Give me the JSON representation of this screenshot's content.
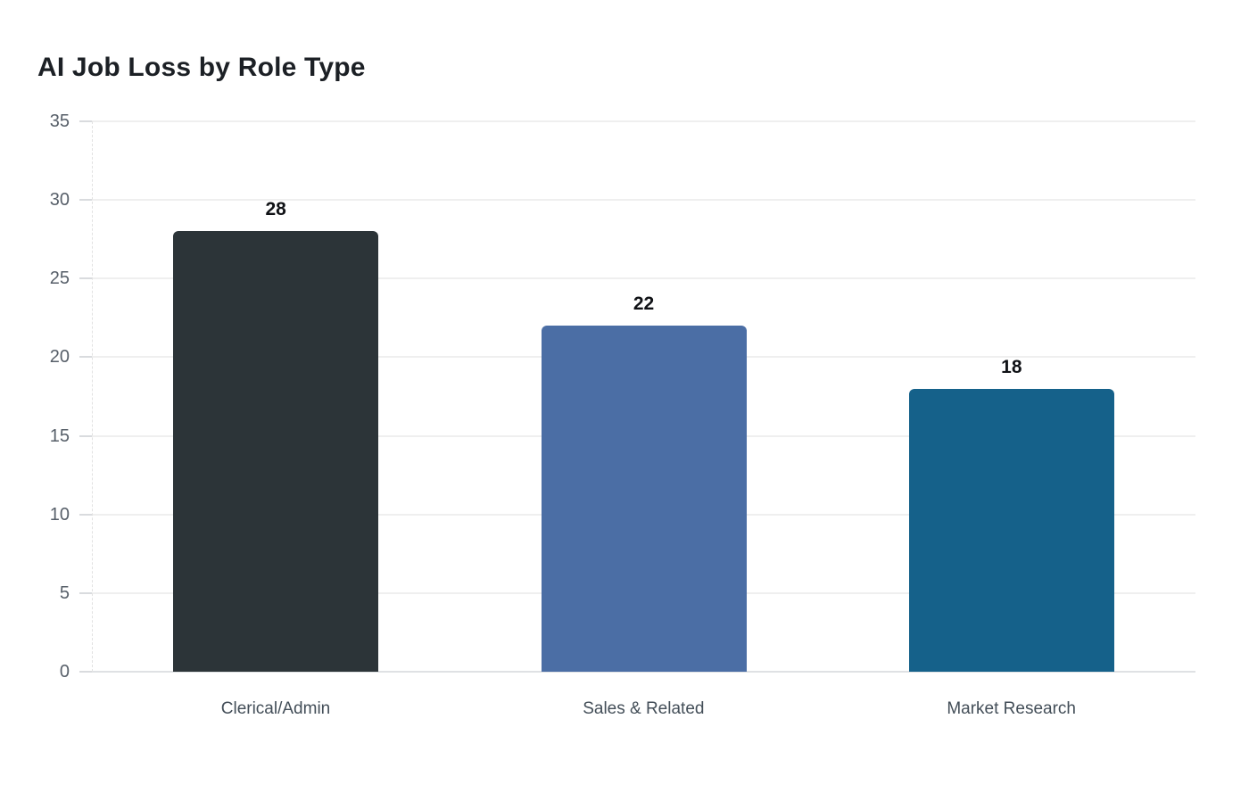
{
  "chart_data": {
    "type": "bar",
    "title": "AI Job Loss by Role Type",
    "categories": [
      "Clerical/Admin",
      "Sales & Related",
      "Market Research"
    ],
    "values": [
      28,
      22,
      18
    ],
    "value_labels": [
      "28",
      "22",
      "18"
    ],
    "bar_colors": [
      "#2c3438",
      "#4b6ea5",
      "#15618a"
    ],
    "xlabel": "",
    "ylabel": "",
    "ylim": [
      0,
      35
    ],
    "yticks": [
      0,
      5,
      10,
      15,
      20,
      25,
      30,
      35
    ],
    "grid": "horizontal",
    "legend": "none",
    "background": "#ffffff",
    "text_colors": {
      "title": "#1c2025",
      "y_tick_labels": "#575f69",
      "x_tick_labels": "#434e58",
      "value_labels": "#101216"
    },
    "line_colors": {
      "gridline": "#efefef",
      "baseline": "#dfe1e4",
      "tick_mark": "#d9dbde"
    }
  }
}
